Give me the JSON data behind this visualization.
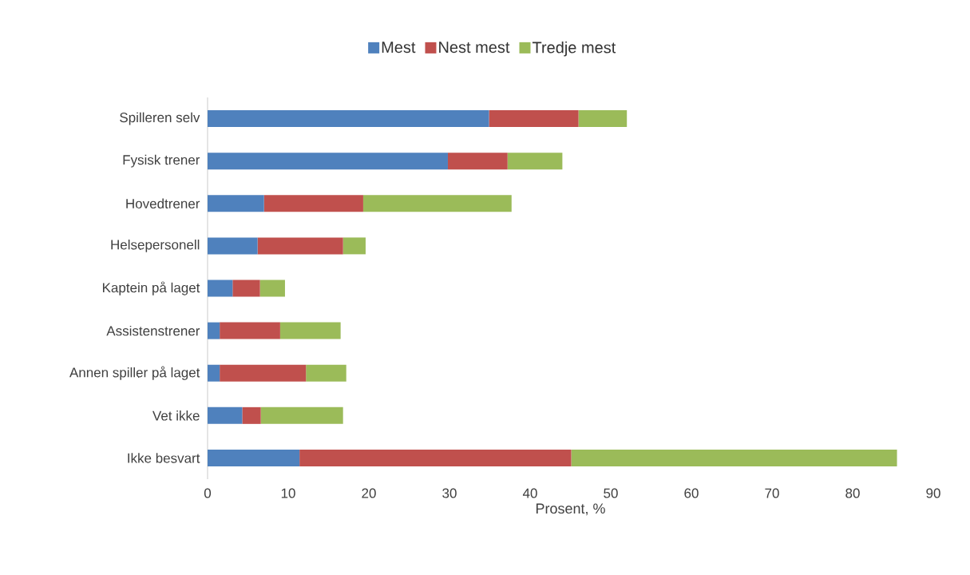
{
  "chart_data": {
    "type": "bar",
    "orientation": "horizontal",
    "stacked": true,
    "categories": [
      "Spilleren selv",
      "Fysisk trener",
      "Hovedtrener",
      "Helsepersonell",
      "Kaptein på laget",
      "Assistenstrener",
      "Annen spiller på laget",
      "Vet ikke",
      "Ikke besvart"
    ],
    "series": [
      {
        "name": "Mest",
        "color": "#4f81bd",
        "values": [
          34.9,
          29.8,
          7.0,
          6.2,
          3.1,
          1.5,
          1.5,
          4.3,
          11.4
        ]
      },
      {
        "name": "Nest mest",
        "color": "#c0504d",
        "values": [
          11.1,
          7.4,
          12.3,
          10.6,
          3.4,
          7.5,
          10.7,
          2.3,
          33.7
        ]
      },
      {
        "name": "Tredje mest",
        "color": "#9bbb59",
        "values": [
          6.0,
          6.8,
          18.4,
          2.8,
          3.1,
          7.5,
          5.0,
          10.2,
          40.4
        ]
      }
    ],
    "xlim": [
      0,
      90
    ],
    "xticks": [
      0,
      10,
      20,
      30,
      40,
      50,
      60,
      70,
      80,
      90
    ],
    "xlabel": "Prosent, %",
    "legend": "top"
  }
}
